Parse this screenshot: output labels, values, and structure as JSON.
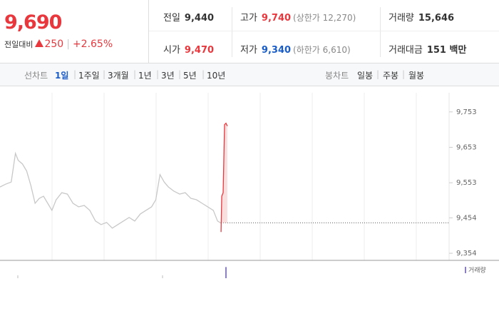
{
  "quote": {
    "price": "9,690",
    "change_label": "전일대비",
    "change": "250",
    "change_pct": "+2.65%"
  },
  "stats": [
    [
      {
        "label": "전일",
        "value": "9,440"
      },
      {
        "label": "고가",
        "value": "9,740",
        "note": "(상한가 12,270)"
      },
      {
        "label": "거래량",
        "value": "15,646"
      }
    ],
    [
      {
        "label": "시가",
        "value": "9,470"
      },
      {
        "label": "저가",
        "value": "9,340",
        "note": "(하한가 6,610)"
      },
      {
        "label": "거래대금",
        "value": "151 백만"
      }
    ]
  ],
  "tabs": {
    "line_label": "선차트",
    "line_tabs": [
      "1일",
      "1주일",
      "3개월",
      "1년",
      "3년",
      "5년",
      "10년"
    ],
    "active": 0,
    "candle_label": "봉차트",
    "candle_tabs": [
      "일봉",
      "주봉",
      "월봉"
    ]
  },
  "chart_data": {
    "type": "line",
    "xlim": [
      0,
      640
    ],
    "ylim": [
      9334,
      9807
    ],
    "yticks": [
      {
        "value": 9753,
        "label": "9,753"
      },
      {
        "value": 9653,
        "label": "9,653"
      },
      {
        "value": 9553,
        "label": "9,553"
      },
      {
        "value": 9454,
        "label": "9,454"
      },
      {
        "value": 9354,
        "label": "9,354"
      }
    ],
    "baseline": 9440,
    "series": [
      {
        "color": "#c8c8c8",
        "x": [
          0,
          8,
          16,
          22,
          26,
          32,
          38,
          44,
          50,
          56,
          62,
          68,
          74,
          80,
          88,
          96,
          104,
          112,
          120,
          128,
          136,
          144,
          152,
          160,
          168,
          176,
          184,
          192,
          200,
          208,
          216,
          222,
          228,
          234,
          240,
          248,
          256,
          264,
          272,
          280,
          288,
          296,
          304,
          310,
          315
        ],
        "values": [
          9541,
          9549,
          9555,
          9636,
          9616,
          9606,
          9586,
          9545,
          9495,
          9509,
          9515,
          9495,
          9475,
          9505,
          9525,
          9521,
          9495,
          9485,
          9489,
          9475,
          9445,
          9435,
          9441,
          9425,
          9435,
          9445,
          9455,
          9445,
          9465,
          9475,
          9485,
          9505,
          9576,
          9555,
          9541,
          9529,
          9521,
          9525,
          9509,
          9505,
          9495,
          9485,
          9475,
          9445,
          9439
        ]
      },
      {
        "color": "#e8383d",
        "x": [
          315,
          316,
          318,
          320,
          322,
          324
        ],
        "values": [
          9414,
          9515,
          9525,
          9717,
          9721,
          9713
        ]
      }
    ],
    "volume": {
      "name": "거래량",
      "color": "#8a7fc4",
      "x": [
        322
      ],
      "values": [
        15646
      ],
      "ylim": [
        0,
        20000
      ]
    }
  }
}
